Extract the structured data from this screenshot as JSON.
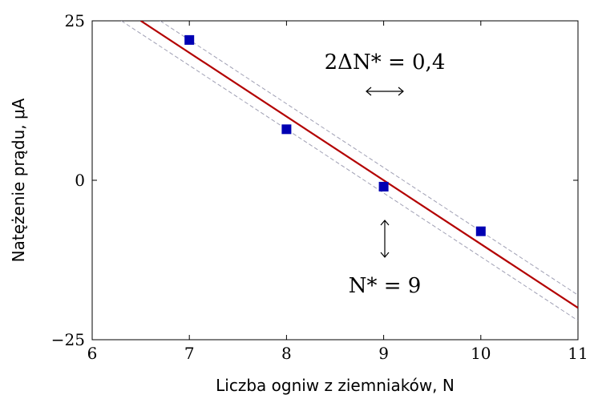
{
  "chart_data": {
    "type": "scatter",
    "title": "",
    "xlabel": "Liczba ogniw z ziemniaków, N",
    "ylabel": "Natężenie prądu, μA",
    "xlim": [
      6,
      11
    ],
    "ylim": [
      -25,
      25
    ],
    "xticks": [
      "6",
      "7",
      "8",
      "9",
      "10",
      "11"
    ],
    "yticks": [
      "−25",
      "0",
      "25"
    ],
    "grid": false,
    "series": [
      {
        "type": "scatter",
        "x": [
          7,
          8,
          9,
          10
        ],
        "y": [
          22,
          8,
          -1,
          -8
        ],
        "color": "#0000b3"
      },
      {
        "type": "line",
        "x": [
          6.5,
          11
        ],
        "y": [
          25,
          -20
        ],
        "color": "#b30000"
      },
      {
        "type": "line",
        "x": [
          6.3,
          11
        ],
        "y": [
          25,
          -22
        ],
        "color": "#a0a0b4",
        "dash": true
      },
      {
        "type": "line",
        "x": [
          6.7,
          11
        ],
        "y": [
          25,
          -18
        ],
        "color": "#a0a0b4",
        "dash": true
      }
    ],
    "annotations": {
      "width_label": "2ΔN* = 0,4",
      "nstar_label": "N* = 9"
    }
  }
}
